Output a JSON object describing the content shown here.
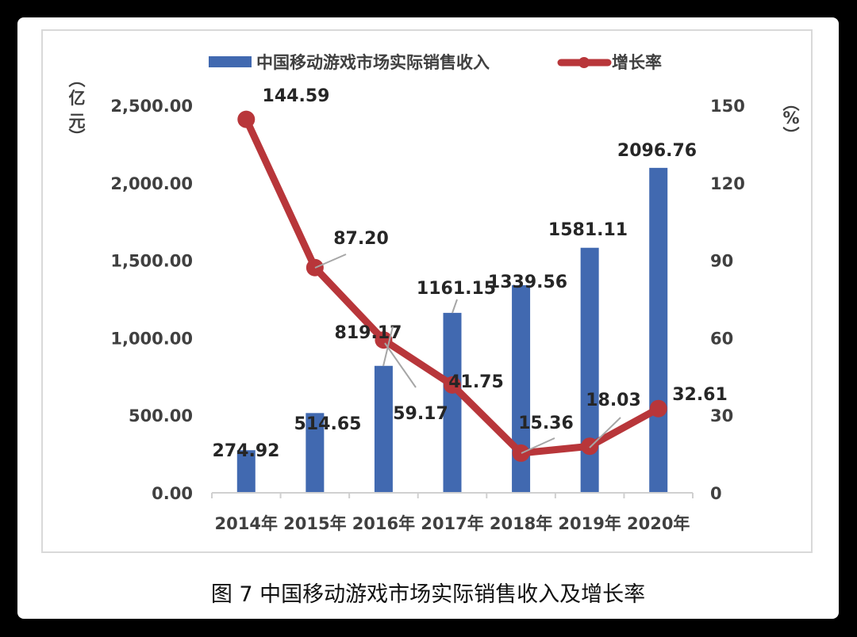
{
  "caption": "图 7  中国移动游戏市场实际销售收入及增长率",
  "legend": {
    "revenue_label": "中国移动游戏市场实际销售收入",
    "growth_label": "增长率"
  },
  "axes": {
    "left_unit": [
      "（",
      "亿",
      "元",
      "）"
    ],
    "right_unit": [
      "（",
      "%",
      "）"
    ],
    "left_ticks": [
      "0.00",
      "500.00",
      "1,000.00",
      "1,500.00",
      "2,000.00",
      "2,500.00"
    ],
    "right_ticks": [
      "0",
      "30",
      "60",
      "90",
      "120",
      "150"
    ]
  },
  "colors": {
    "bar": "#4169b0",
    "line": "#b8363a",
    "leader": "#a6a6a6",
    "axis": "#d0d0d0"
  },
  "chart_data": {
    "type": "bar+line",
    "title": "中国移动游戏市场实际销售收入及增长率",
    "categories": [
      "2014年",
      "2015年",
      "2016年",
      "2017年",
      "2018年",
      "2019年",
      "2020年"
    ],
    "series": [
      {
        "name": "中国移动游戏市场实际销售收入",
        "type": "bar",
        "axis": "left",
        "unit": "亿元",
        "values": [
          274.92,
          514.65,
          819.17,
          1161.15,
          1339.56,
          1581.11,
          2096.76
        ]
      },
      {
        "name": "增长率",
        "type": "line",
        "axis": "right",
        "unit": "%",
        "values": [
          144.59,
          87.2,
          59.17,
          41.75,
          15.36,
          18.03,
          32.61
        ]
      }
    ],
    "ylabel_left": "（亿元）",
    "ylim_left": [
      0,
      2500
    ],
    "ylabel_right": "（%）",
    "ylim_right": [
      0,
      150
    ],
    "legend_position": "top",
    "grid": false
  }
}
